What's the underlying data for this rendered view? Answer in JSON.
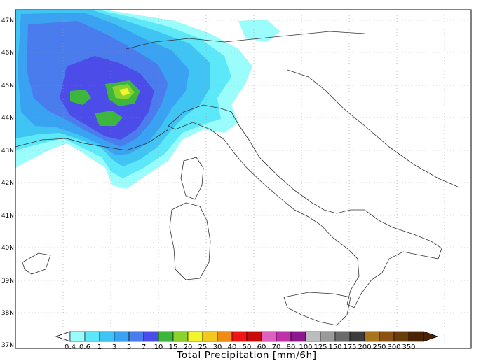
{
  "map": {
    "latitude_labels": [
      "47N",
      "46N",
      "45N",
      "44N",
      "43N",
      "42N",
      "41N",
      "40N",
      "39N",
      "38N",
      "37N"
    ],
    "grid": true,
    "region": "Italy"
  },
  "colorbar": {
    "title": "Total Precipitation [mm/6h]",
    "levels": [
      "0.4",
      "0.6",
      "1",
      "3",
      "5",
      "7",
      "10",
      "15",
      "20",
      "25",
      "30",
      "40",
      "50",
      "60",
      "70",
      "80",
      "100",
      "125",
      "150",
      "175",
      "200",
      "250",
      "300",
      "350"
    ],
    "colors": [
      "#9bfcfc",
      "#5ce8f8",
      "#3fc4f4",
      "#3aa2f2",
      "#4a7cee",
      "#4c4ce8",
      "#3cb63c",
      "#8cd22c",
      "#f4f42c",
      "#f4c81c",
      "#f08c14",
      "#f01414",
      "#c80c0c",
      "#e060c0",
      "#c030a8",
      "#8c1890",
      "#bdbdbd",
      "#9a9a9a",
      "#6a6a6a",
      "#3c3c3c",
      "#a8741c",
      "#8a5410",
      "#6a3c08",
      "#4a2404"
    ],
    "low_cap_color": "#ffffff",
    "high_cap_color": "#4a2404"
  }
}
